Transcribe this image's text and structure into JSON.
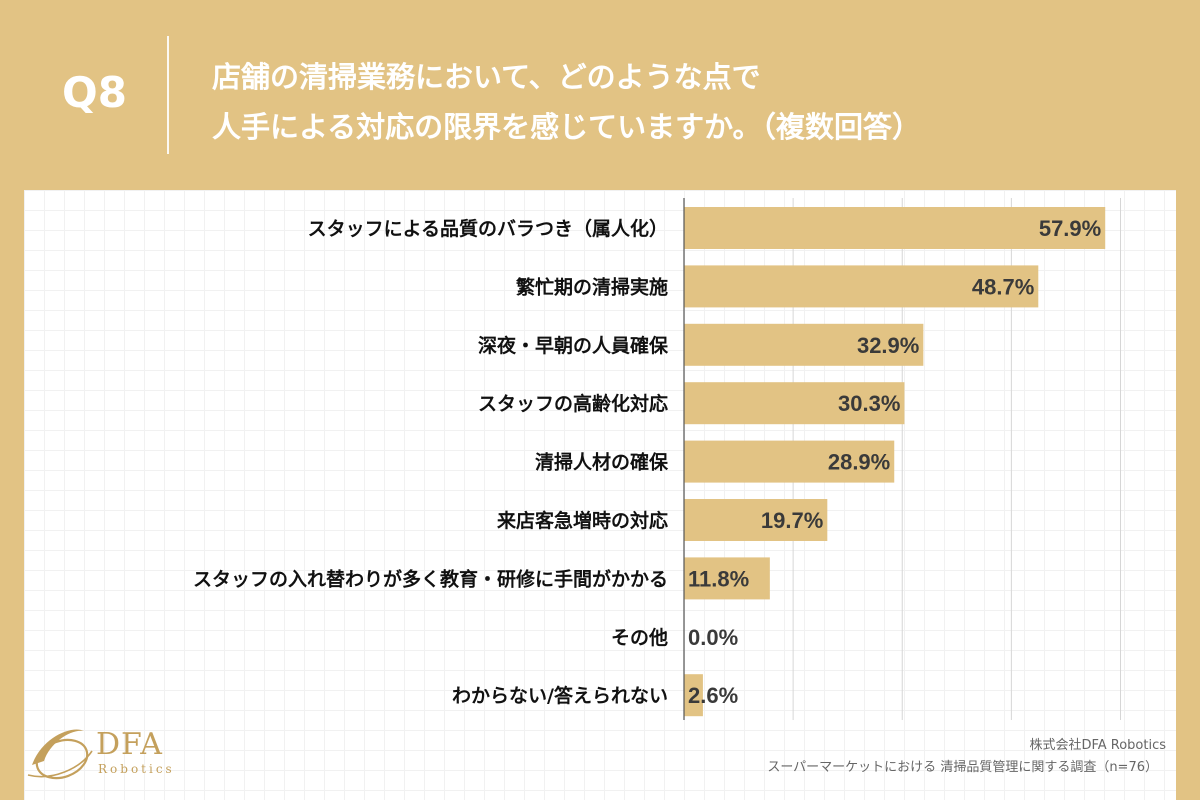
{
  "header": {
    "question_number": "Q8",
    "title_line1": "店舗の清掃業務において、どのような点で",
    "title_line2": "人手による対応の限界を感じていますか。（複数回答）"
  },
  "colors": {
    "accent": "#e2c384",
    "bar": "#e2c384",
    "text": "#111111",
    "value_text": "#3a3a3a"
  },
  "chart_data": {
    "type": "bar",
    "orientation": "horizontal",
    "categories": [
      "スタッフによる品質のバラつき（属人化）",
      "繁忙期の清掃実施",
      "深夜・早朝の人員確保",
      "スタッフの高齢化対応",
      "清掃人材の確保",
      "来店客急増時の対応",
      "スタッフの入れ替わりが多く教育・研修に手間がかかる",
      "その他",
      "わからない/答えられない"
    ],
    "values": [
      57.9,
      48.7,
      32.9,
      30.3,
      28.9,
      19.7,
      11.8,
      0.0,
      2.6
    ],
    "value_labels": [
      "57.9%",
      "48.7%",
      "32.9%",
      "30.3%",
      "28.9%",
      "19.7%",
      "11.8%",
      "0.0%",
      "2.6%"
    ],
    "xlim": [
      0,
      60
    ],
    "grid": true
  },
  "logo": {
    "name": "DFA",
    "sub": "Robotics"
  },
  "footer": {
    "company": "株式会社DFA Robotics",
    "survey": "スーパーマーケットにおける 清掃品質管理に関する調査（n=76）"
  }
}
